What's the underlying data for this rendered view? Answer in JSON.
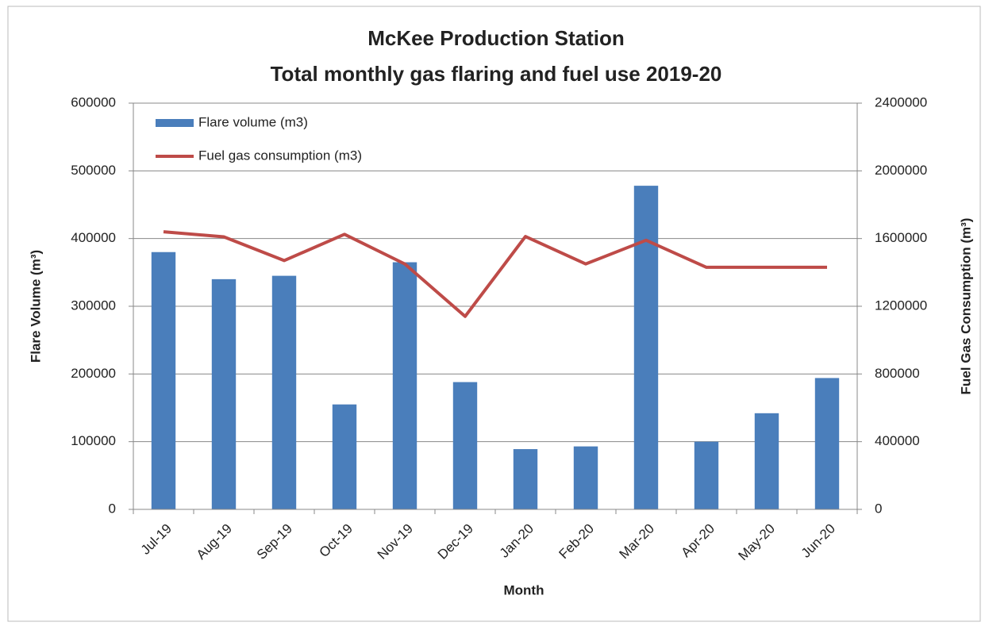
{
  "chart_data": {
    "type": "bar",
    "title": "McKee Production Station",
    "subtitle": "Total monthly gas flaring and fuel use 2019-20",
    "x_label": "Month",
    "y_label": "Flare Volume (m³)",
    "y2_label": "Fuel Gas Consumption (m³)",
    "categories": [
      "Jul-19",
      "Aug-19",
      "Sep-19",
      "Oct-19",
      "Nov-19",
      "Dec-19",
      "Jan-20",
      "Feb-20",
      "Mar-20",
      "Apr-20",
      "May-20",
      "Jun-20"
    ],
    "series": [
      {
        "name": "Flare volume (m3)",
        "type": "bar",
        "color": "#4a7ebb",
        "values": [
          380000,
          340000,
          345000,
          155000,
          365000,
          188000,
          89000,
          93000,
          478000,
          100000,
          142000,
          194000
        ]
      },
      {
        "name": "Fuel gas consumption (m3)",
        "type": "line",
        "axis": "y2",
        "color": "#be4b48",
        "values": [
          1640000,
          1610000,
          1470000,
          1625000,
          1450000,
          1140000,
          1612000,
          1450000,
          1590000,
          1430000,
          1430000,
          1430000
        ]
      }
    ],
    "ylim": [
      0,
      600000
    ],
    "yticks": [
      0,
      100000,
      200000,
      300000,
      400000,
      500000,
      600000
    ],
    "y2lim": [
      0,
      2400000
    ],
    "y2ticks": [
      0,
      400000,
      800000,
      1200000,
      1600000,
      2000000,
      2400000
    ],
    "grid": true,
    "legend": "upper left"
  }
}
